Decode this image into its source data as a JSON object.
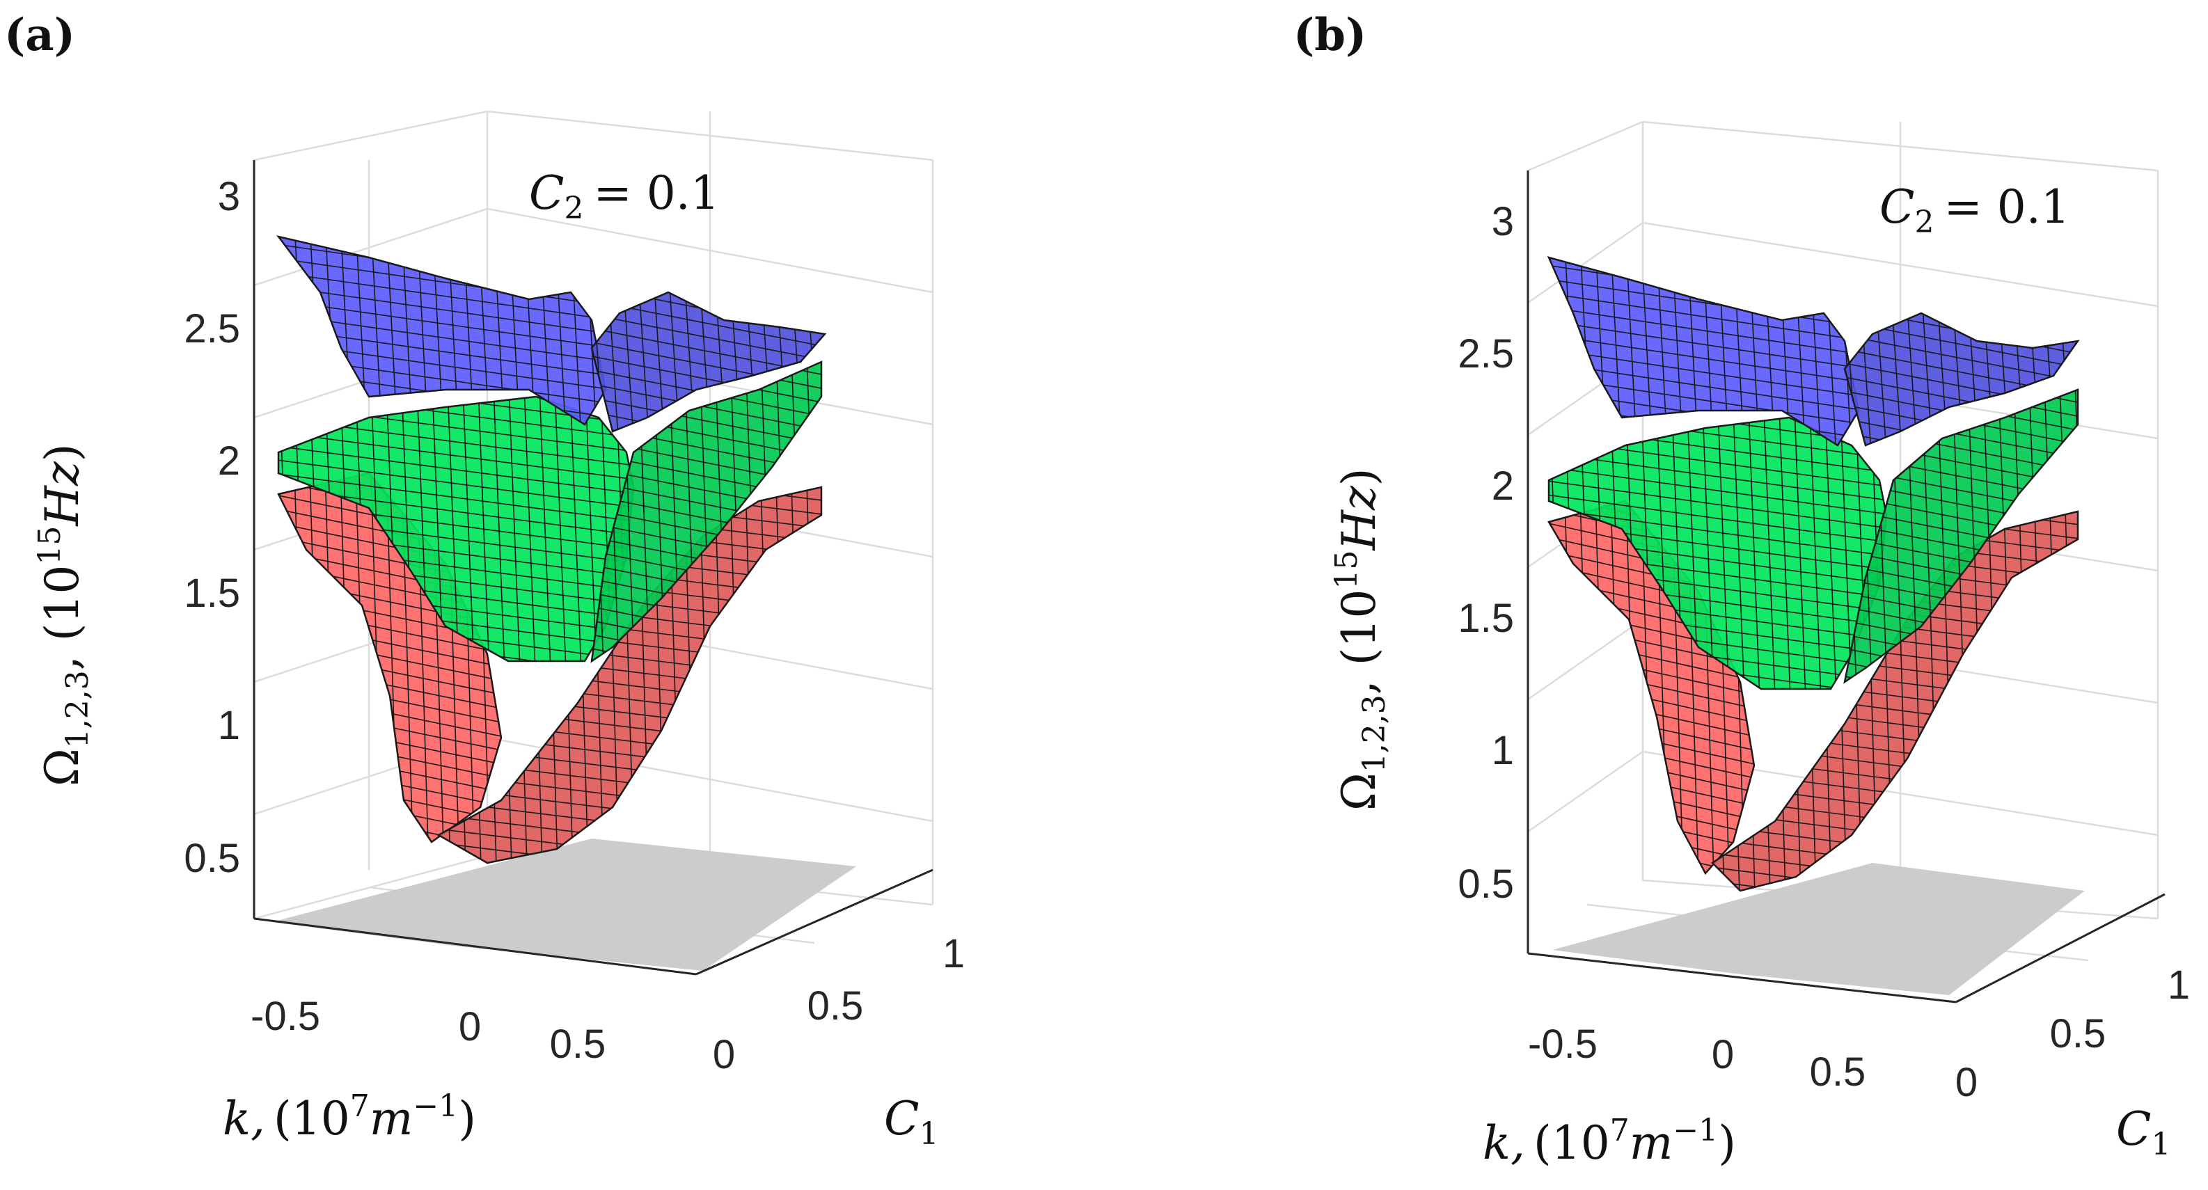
{
  "figure": {
    "panels": [
      {
        "label": "(a)"
      },
      {
        "label": "(b)"
      }
    ]
  },
  "chart_data": [
    {
      "type": "surface3d",
      "panel": "(a)",
      "annotation": {
        "lhs": "C",
        "sub": "2",
        "rhs": "= 0.1"
      },
      "xlabel": {
        "sym": "k,",
        "paren": "(10",
        "sup": "7",
        "unit": "m",
        "unit_sup": "−1",
        "close": ")"
      },
      "ylabel": {
        "sym": "C",
        "sub": "1"
      },
      "zlabel": {
        "sym": "Ω",
        "sub": "1,2,3",
        "rest": ", (10",
        "sup": "15",
        "unit": "Hz",
        "close": ")"
      },
      "x_ticks": [
        "-0.5",
        "0",
        "0.5"
      ],
      "y_ticks": [
        "0",
        "0.5",
        "1"
      ],
      "z_ticks": [
        "0.5",
        "1",
        "1.5",
        "2",
        "2.5",
        "3"
      ],
      "xlim": [
        -0.8,
        0.8
      ],
      "ylim": [
        0,
        1
      ],
      "zlim": [
        0.3,
        3.2
      ],
      "grid": true,
      "series": [
        {
          "name": "Ω1",
          "color": "#ff6666",
          "min_value": 0.55,
          "max_value": 1.95
        },
        {
          "name": "Ω2",
          "color": "#00e65c",
          "min_value": 1.25,
          "max_value": 2.4
        },
        {
          "name": "Ω3",
          "color": "#5c5cff",
          "min_value": 2.15,
          "max_value": 2.85
        }
      ]
    },
    {
      "type": "surface3d",
      "panel": "(b)",
      "annotation": {
        "lhs": "C",
        "sub": "2",
        "rhs": "= 0.1"
      },
      "xlabel": {
        "sym": "k,",
        "paren": "(10",
        "sup": "7",
        "unit": "m",
        "unit_sup": "−1",
        "close": ")"
      },
      "ylabel": {
        "sym": "C",
        "sub": "1"
      },
      "zlabel": {
        "sym": "Ω",
        "sub": "1,2,3",
        "rest": ", (10",
        "sup": "15",
        "unit": "Hz",
        "close": ")"
      },
      "x_ticks": [
        "-0.5",
        "0",
        "0.5"
      ],
      "y_ticks": [
        "0",
        "0.5",
        "1"
      ],
      "z_ticks": [
        "0.5",
        "1",
        "1.5",
        "2",
        "2.5",
        "3"
      ],
      "xlim": [
        -0.8,
        0.8
      ],
      "ylim": [
        0,
        1
      ],
      "zlim": [
        0.3,
        3.2
      ],
      "grid": true,
      "series": [
        {
          "name": "Ω1",
          "color": "#ff6666",
          "min_value": 0.55,
          "max_value": 1.9
        },
        {
          "name": "Ω2",
          "color": "#00e65c",
          "min_value": 1.2,
          "max_value": 2.35
        },
        {
          "name": "Ω3",
          "color": "#5c5cff",
          "min_value": 2.1,
          "max_value": 2.85
        }
      ]
    }
  ]
}
